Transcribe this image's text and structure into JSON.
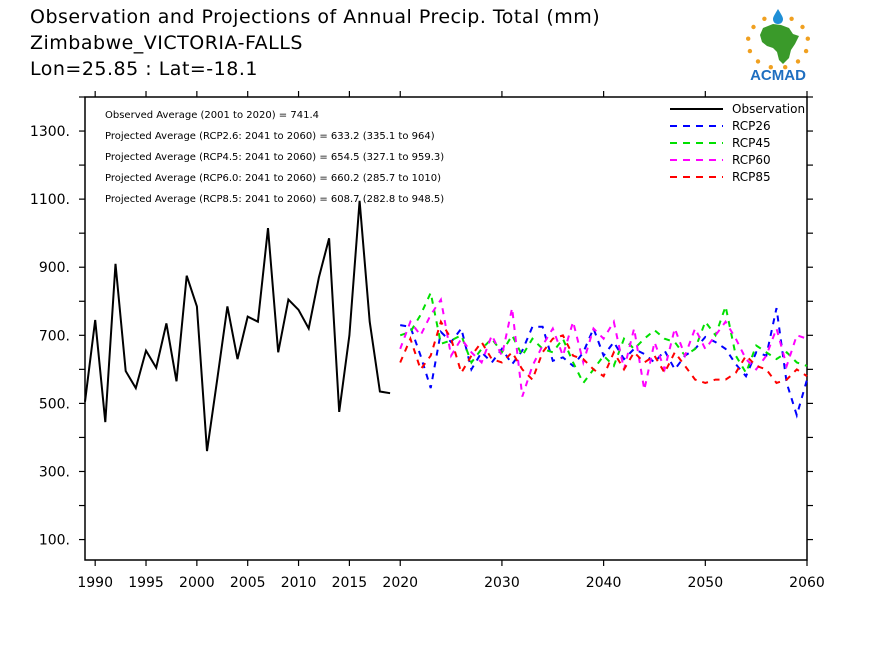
{
  "title": {
    "line1": "Observation and Projections of Annual Precip. Total (mm)",
    "line2": "Zimbabwe_VICTORIA-FALLS",
    "line3": "Lon=25.85 : Lat=-18.1"
  },
  "logo": {
    "text": "ACMAD",
    "colors": {
      "africa": "#3a9a2a",
      "drop": "#1f8fd6",
      "stars": "#f0a020",
      "text": "#1f6fc0"
    }
  },
  "stats": [
    "Observed Average (2001 to 2020) = 741.4",
    "Projected Average (RCP2.6: 2041 to 2060) = 633.2 (335.1 to 964)",
    "Projected Average (RCP4.5: 2041 to 2060) = 654.5 (327.1 to 959.3)",
    "Projected Average (RCP6.0: 2041 to 2060) = 660.2 (285.7 to 1010)",
    "Projected Average (RCP8.5: 2041 to 2060) = 608.7 (282.8 to 948.5)"
  ],
  "chart_data": {
    "type": "line",
    "xlim": [
      1989,
      2060
    ],
    "ylim": [
      40,
      1400
    ],
    "x_ticks": [
      1990,
      1995,
      2000,
      2005,
      2010,
      2015,
      2020,
      2030,
      2040,
      2050,
      2060
    ],
    "x_tick_labels": [
      "1990",
      "1995",
      "2000",
      "2005",
      "2010",
      "2015",
      "2020",
      "2030",
      "2040",
      "2050",
      "2060"
    ],
    "y_ticks": [
      100,
      300,
      500,
      700,
      900,
      1100,
      1300
    ],
    "y_tick_labels": [
      "100.",
      "300.",
      "500.",
      "700.",
      "900.",
      "1100.",
      "1300."
    ],
    "legend_position": "top-right",
    "series": [
      {
        "name": "Observation",
        "color": "#000000",
        "dashed": false,
        "x": [
          1989,
          1990,
          1991,
          1992,
          1993,
          1994,
          1995,
          1996,
          1997,
          1998,
          1999,
          2000,
          2001,
          2002,
          2003,
          2004,
          2005,
          2006,
          2007,
          2008,
          2009,
          2010,
          2011,
          2012,
          2013,
          2014,
          2015,
          2016,
          2017,
          2018,
          2019
        ],
        "y": [
          505,
          745,
          445,
          910,
          595,
          545,
          655,
          605,
          735,
          565,
          875,
          785,
          360,
          570,
          785,
          630,
          755,
          740,
          1015,
          650,
          805,
          775,
          720,
          870,
          985,
          475,
          700,
          1095,
          740,
          535,
          530
        ]
      },
      {
        "name": "RCP26",
        "color": "#0000ff",
        "dashed": true,
        "x": [
          2020,
          2021,
          2022,
          2023,
          2024,
          2025,
          2026,
          2027,
          2028,
          2029,
          2030,
          2031,
          2032,
          2033,
          2034,
          2035,
          2036,
          2037,
          2038,
          2039,
          2040,
          2041,
          2042,
          2043,
          2044,
          2045,
          2046,
          2047,
          2048,
          2049,
          2050,
          2051,
          2052,
          2053,
          2054,
          2055,
          2056,
          2057,
          2058,
          2059,
          2060
        ],
        "y": [
          730,
          725,
          640,
          545,
          710,
          680,
          720,
          600,
          650,
          620,
          660,
          615,
          655,
          725,
          725,
          625,
          635,
          610,
          650,
          720,
          640,
          680,
          630,
          660,
          645,
          620,
          655,
          600,
          640,
          660,
          695,
          680,
          660,
          615,
          580,
          650,
          640,
          780,
          560,
          465,
          570
        ]
      },
      {
        "name": "RCP45",
        "color": "#00e000",
        "dashed": true,
        "x": [
          2020,
          2021,
          2022,
          2023,
          2024,
          2025,
          2026,
          2027,
          2028,
          2029,
          2030,
          2031,
          2032,
          2033,
          2034,
          2035,
          2036,
          2037,
          2038,
          2039,
          2040,
          2041,
          2042,
          2043,
          2044,
          2045,
          2046,
          2047,
          2048,
          2049,
          2050,
          2051,
          2052,
          2053,
          2054,
          2055,
          2056,
          2057,
          2058,
          2059,
          2060
        ],
        "y": [
          700,
          710,
          760,
          825,
          675,
          685,
          700,
          620,
          660,
          690,
          650,
          700,
          640,
          690,
          660,
          650,
          690,
          620,
          560,
          600,
          640,
          610,
          690,
          660,
          690,
          715,
          690,
          680,
          640,
          660,
          740,
          700,
          785,
          640,
          590,
          670,
          650,
          630,
          650,
          620,
          610
        ]
      },
      {
        "name": "RCP60",
        "color": "#ff00ff",
        "dashed": true,
        "x": [
          2020,
          2021,
          2022,
          2023,
          2024,
          2025,
          2026,
          2027,
          2028,
          2029,
          2030,
          2031,
          2032,
          2033,
          2034,
          2035,
          2036,
          2037,
          2038,
          2039,
          2040,
          2041,
          2042,
          2043,
          2044,
          2045,
          2046,
          2047,
          2048,
          2049,
          2050,
          2051,
          2052,
          2053,
          2054,
          2055,
          2056,
          2057,
          2058,
          2059,
          2060
        ],
        "y": [
          660,
          740,
          700,
          760,
          805,
          640,
          690,
          650,
          620,
          700,
          640,
          780,
          520,
          610,
          670,
          720,
          640,
          740,
          620,
          720,
          690,
          740,
          600,
          720,
          540,
          680,
          600,
          720,
          640,
          720,
          660,
          700,
          740,
          690,
          630,
          600,
          640,
          720,
          610,
          700,
          690
        ]
      },
      {
        "name": "RCP85",
        "color": "#ff0000",
        "dashed": true,
        "x": [
          2020,
          2021,
          2022,
          2023,
          2024,
          2025,
          2026,
          2027,
          2028,
          2029,
          2030,
          2031,
          2032,
          2033,
          2034,
          2035,
          2036,
          2037,
          2038,
          2039,
          2040,
          2041,
          2042,
          2043,
          2044,
          2045,
          2046,
          2047,
          2048,
          2049,
          2050,
          2051,
          2052,
          2053,
          2054,
          2055,
          2056,
          2057,
          2058,
          2059,
          2060
        ],
        "y": [
          620,
          690,
          600,
          640,
          740,
          690,
          590,
          640,
          680,
          630,
          620,
          650,
          600,
          570,
          650,
          690,
          700,
          640,
          630,
          600,
          580,
          650,
          600,
          650,
          620,
          640,
          590,
          650,
          610,
          570,
          560,
          570,
          570,
          590,
          640,
          610,
          600,
          560,
          570,
          600,
          580
        ]
      }
    ]
  }
}
